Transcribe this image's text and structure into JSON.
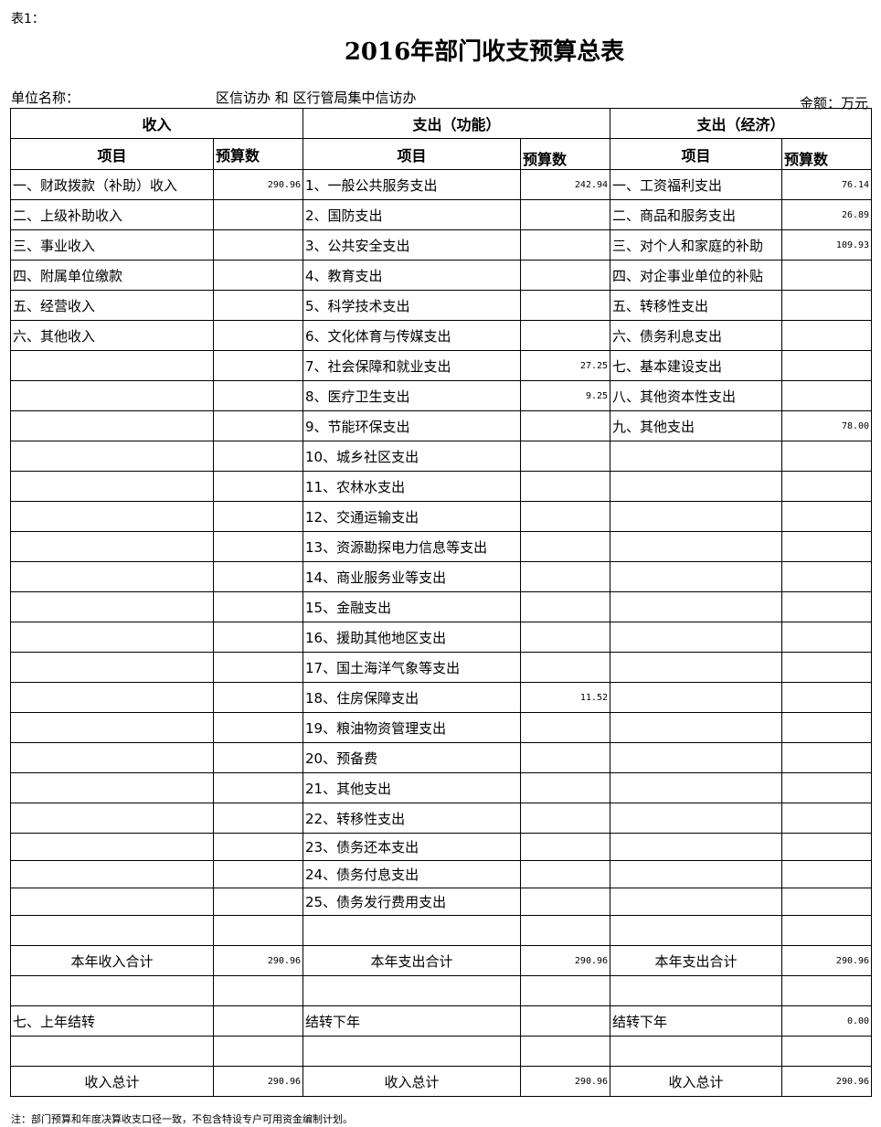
{
  "tag": "表1：",
  "title": "2016年部门收支预算总表",
  "unit_label": "单位名称：",
  "unit_name": "区信访办 和 区行管局集中信访办",
  "amount_unit": "金额：万元",
  "headers": {
    "income": "收入",
    "func": "支出（功能）",
    "econ": "支出（经济）",
    "item": "项目",
    "budget": "预算数"
  },
  "rows": [
    [
      "一、财政拨款（补助）收入",
      "290.96",
      "1、一般公共服务支出",
      "242.94",
      "一、工资福利支出",
      "76.14"
    ],
    [
      "二、上级补助收入",
      "",
      "2、国防支出",
      "",
      "二、商品和服务支出",
      "26.89"
    ],
    [
      "三、事业收入",
      "",
      "3、公共安全支出",
      "",
      "三、对个人和家庭的补助",
      "109.93"
    ],
    [
      "四、附属单位缴款",
      "",
      "4、教育支出",
      "",
      "四、对企事业单位的补贴",
      ""
    ],
    [
      "五、经营收入",
      "",
      "5、科学技术支出",
      "",
      "五、转移性支出",
      ""
    ],
    [
      "六、其他收入",
      "",
      "6、文化体育与传媒支出",
      "",
      "六、债务利息支出",
      ""
    ],
    [
      "",
      "",
      "7、社会保障和就业支出",
      "27.25",
      "七、基本建设支出",
      ""
    ],
    [
      "",
      "",
      "8、医疗卫生支出",
      "9.25",
      "八、其他资本性支出",
      ""
    ],
    [
      "",
      "",
      "9、节能环保支出",
      "",
      "九、其他支出",
      "78.00"
    ],
    [
      "",
      "",
      "10、城乡社区支出",
      "",
      "",
      ""
    ],
    [
      "",
      "",
      "11、农林水支出",
      "",
      "",
      ""
    ],
    [
      "",
      "",
      "12、交通运输支出",
      "",
      "",
      ""
    ],
    [
      "",
      "",
      "13、资源勘探电力信息等支出",
      "",
      "",
      ""
    ],
    [
      "",
      "",
      "14、商业服务业等支出",
      "",
      "",
      ""
    ],
    [
      "",
      "",
      "15、金融支出",
      "",
      "",
      ""
    ],
    [
      "",
      "",
      "16、援助其他地区支出",
      "",
      "",
      ""
    ],
    [
      "",
      "",
      "17、国土海洋气象等支出",
      "",
      "",
      ""
    ],
    [
      "",
      "",
      "18、住房保障支出",
      "11.52",
      "",
      ""
    ],
    [
      "",
      "",
      "19、粮油物资管理支出",
      "",
      "",
      ""
    ],
    [
      "",
      "",
      "20、预备费",
      "",
      "",
      ""
    ],
    [
      "",
      "",
      "21、其他支出",
      "",
      "",
      ""
    ],
    [
      "",
      "",
      "22、转移性支出",
      "",
      "",
      ""
    ],
    [
      "",
      "",
      "23、债务还本支出",
      "",
      "",
      ""
    ],
    [
      "",
      "",
      "24、债务付息支出",
      "",
      "",
      ""
    ],
    [
      "",
      "",
      "25、债务发行费用支出",
      "",
      "",
      ""
    ],
    [
      "",
      "",
      "",
      "",
      "",
      ""
    ]
  ],
  "totals": {
    "year": [
      "本年收入合计",
      "290.96",
      "本年支出合计",
      "290.96",
      "本年支出合计",
      "290.96"
    ],
    "carry": [
      "七、上年结转",
      "",
      "结转下年",
      "",
      "结转下年",
      "0.00"
    ],
    "grand": [
      "收入总计",
      "290.96",
      "收入总计",
      "290.96",
      "收入总计",
      "290.96"
    ]
  },
  "note": "注：部门预算和年度决算收支口径一致，不包含特设专户可用资金编制计划。"
}
